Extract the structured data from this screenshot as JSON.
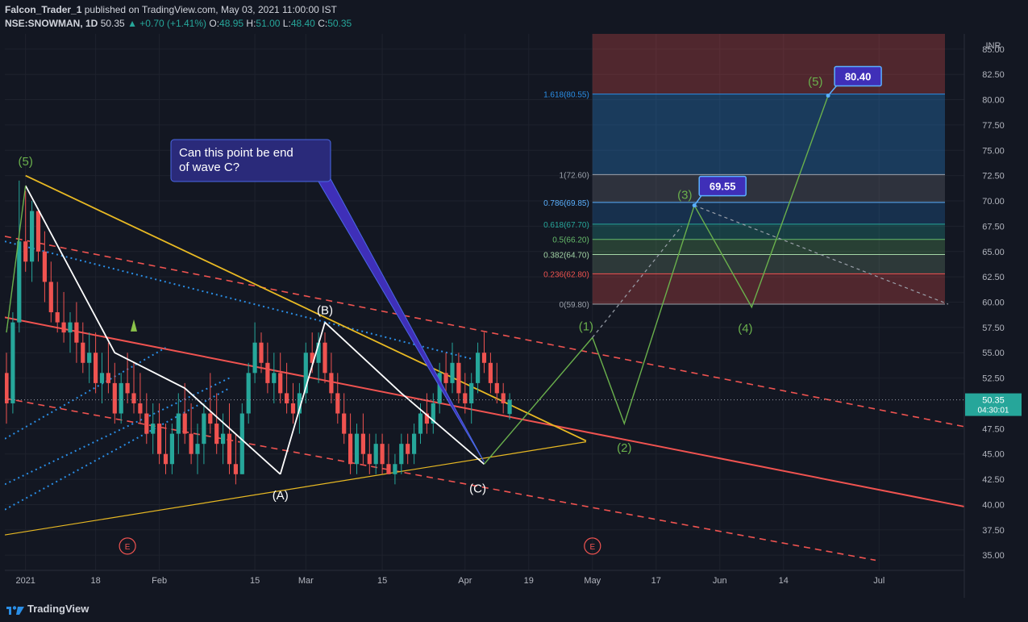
{
  "header": {
    "author": "Falcon_Trader_1",
    "published_text": "published on TradingView.com, May 03, 2021 11:00:00 IST",
    "symbol": "NSE:SNOWMAN, 1D",
    "last": "50.35",
    "change": "+0.70 (+1.41%)",
    "o_label": "O:",
    "o_val": "48.95",
    "h_label": "H:",
    "h_val": "51.00",
    "l_label": "L:",
    "l_val": "48.40",
    "c_label": "C:",
    "c_val": "50.35"
  },
  "footer": {
    "brand": "TradingView"
  },
  "colors": {
    "bg": "#131722",
    "grid": "#1e222d",
    "text": "#b2b5be",
    "up": "#26a69a",
    "down": "#ef5350",
    "white": "#ffffff",
    "yellow": "#e8b923",
    "red_line": "#f05350",
    "blue_dots": "#2a8ee6",
    "wave_green": "#6ab04c",
    "callout_bg": "#2a2a7a",
    "label_bg": "#3f2fb8"
  },
  "chart_data": {
    "type": "candlestick",
    "currency": "INR",
    "y_ticks": [
      "85.00",
      "82.50",
      "80.00",
      "77.50",
      "75.00",
      "72.50",
      "70.00",
      "67.50",
      "65.00",
      "62.50",
      "60.00",
      "57.50",
      "55.00",
      "52.50",
      "47.50",
      "45.00",
      "42.50",
      "40.00",
      "37.50",
      "35.00"
    ],
    "ylim": [
      33.5,
      86.5
    ],
    "x_ticks": [
      {
        "i": 3,
        "label": "2021"
      },
      {
        "i": 14,
        "label": "18"
      },
      {
        "i": 24,
        "label": "Feb"
      },
      {
        "i": 39,
        "label": "15"
      },
      {
        "i": 47,
        "label": "Mar"
      },
      {
        "i": 59,
        "label": "15"
      },
      {
        "i": 72,
        "label": "Apr"
      },
      {
        "i": 82,
        "label": "19"
      },
      {
        "i": 92,
        "label": "May"
      },
      {
        "i": 102,
        "label": "17"
      },
      {
        "i": 112,
        "label": "Jun"
      },
      {
        "i": 122,
        "label": "14"
      },
      {
        "i": 137,
        "label": "Jul"
      }
    ],
    "candles": [
      [
        53,
        55,
        48,
        50
      ],
      [
        50,
        59,
        49,
        58
      ],
      [
        58,
        72,
        57,
        66
      ],
      [
        66,
        71,
        63,
        64
      ],
      [
        64,
        70,
        62,
        69
      ],
      [
        69,
        69,
        64,
        65
      ],
      [
        65,
        67,
        60,
        62
      ],
      [
        62,
        64,
        58,
        59
      ],
      [
        59,
        62,
        57,
        58
      ],
      [
        58,
        61,
        56,
        57
      ],
      [
        57,
        59,
        55,
        58
      ],
      [
        58,
        60,
        54,
        56
      ],
      [
        56,
        58,
        53,
        54
      ],
      [
        54,
        57,
        52,
        55
      ],
      [
        55,
        57,
        51,
        52
      ],
      [
        52,
        55,
        50,
        53
      ],
      [
        53,
        56,
        51,
        52
      ],
      [
        52,
        54,
        48,
        49
      ],
      [
        49,
        53,
        48,
        52
      ],
      [
        52,
        55,
        50,
        51
      ],
      [
        51,
        54,
        49,
        50
      ],
      [
        50,
        53,
        48,
        49
      ],
      [
        49,
        51,
        46,
        47
      ],
      [
        47,
        50,
        45,
        48
      ],
      [
        48,
        50,
        44,
        45
      ],
      [
        45,
        48,
        43,
        44
      ],
      [
        44,
        48,
        43,
        47
      ],
      [
        47,
        51,
        45,
        49
      ],
      [
        49,
        52,
        46,
        47
      ],
      [
        47,
        50,
        44,
        45
      ],
      [
        45,
        48,
        43,
        46
      ],
      [
        46,
        50,
        44,
        49
      ],
      [
        49,
        53,
        47,
        48
      ],
      [
        48,
        51,
        45,
        46
      ],
      [
        46,
        49,
        44,
        47
      ],
      [
        47,
        50,
        43,
        44
      ],
      [
        44,
        47,
        42,
        43
      ],
      [
        43,
        50,
        43,
        49
      ],
      [
        49,
        54,
        48,
        53
      ],
      [
        53,
        58,
        52,
        56
      ],
      [
        56,
        57,
        53,
        54
      ],
      [
        54,
        56,
        51,
        52
      ],
      [
        52,
        55,
        50,
        53
      ],
      [
        53,
        55,
        50,
        51
      ],
      [
        51,
        54,
        49,
        50
      ],
      [
        50,
        52,
        48,
        49
      ],
      [
        49,
        52,
        47,
        51
      ],
      [
        51,
        56,
        50,
        55
      ],
      [
        55,
        57,
        53,
        54
      ],
      [
        54,
        57,
        52,
        56
      ],
      [
        56,
        57,
        52,
        53
      ],
      [
        53,
        55,
        50,
        51
      ],
      [
        51,
        53,
        48,
        49
      ],
      [
        49,
        51,
        46,
        47
      ],
      [
        47,
        49,
        43,
        44
      ],
      [
        44,
        48,
        43,
        47
      ],
      [
        47,
        49,
        44,
        45
      ],
      [
        45,
        47,
        43,
        44
      ],
      [
        44,
        47,
        43,
        46
      ],
      [
        46,
        47,
        43,
        44
      ],
      [
        44,
        46,
        43,
        43
      ],
      [
        43,
        45,
        42,
        44
      ],
      [
        44,
        47,
        43,
        46
      ],
      [
        46,
        47,
        44,
        45
      ],
      [
        45,
        48,
        44,
        47
      ],
      [
        47,
        50,
        46,
        49
      ],
      [
        49,
        51,
        47,
        48
      ],
      [
        48,
        51,
        47,
        50
      ],
      [
        50,
        54,
        49,
        53
      ],
      [
        53,
        55,
        51,
        52
      ],
      [
        52,
        56,
        51,
        54
      ],
      [
        54,
        55,
        50,
        51
      ],
      [
        51,
        53,
        49,
        50
      ],
      [
        50,
        53,
        48,
        52
      ],
      [
        52,
        56,
        51,
        55
      ],
      [
        55,
        57,
        53,
        54
      ],
      [
        54,
        55,
        51,
        52
      ],
      [
        52,
        54,
        50,
        51
      ],
      [
        51,
        52,
        49,
        50
      ],
      [
        48.95,
        51,
        48.4,
        50.35
      ]
    ],
    "fib_levels": [
      {
        "ratio": "1.618(80.55)",
        "value": 80.55,
        "color": "#2a8ee6"
      },
      {
        "ratio": "1(72.60)",
        "value": 72.6,
        "color": "#9aa0aa"
      },
      {
        "ratio": "0.786(69.85)",
        "value": 69.85,
        "color": "#5ab0ff"
      },
      {
        "ratio": "0.618(67.70)",
        "value": 67.7,
        "color": "#26a69a"
      },
      {
        "ratio": "0.5(66.20)",
        "value": 66.2,
        "color": "#66bb6a"
      },
      {
        "ratio": "0.382(64.70)",
        "value": 64.7,
        "color": "#a5d6a7"
      },
      {
        "ratio": "0.236(62.80)",
        "value": 62.8,
        "color": "#ef5350"
      },
      {
        "ratio": "0(59.80)",
        "value": 59.8,
        "color": "#9aa0aa"
      }
    ],
    "wave_labels": {
      "w5_old": "(5)",
      "A": "(A)",
      "B": "(B)",
      "C": "(C)",
      "w1": "(1)",
      "w2": "(2)",
      "w3": "(3)",
      "w4": "(4)",
      "w5": "(5)"
    },
    "price_labels": {
      "current": "50.35",
      "countdown": "04:30:01",
      "target3": "69.55",
      "target5": "80.40"
    },
    "callout": {
      "line1": "Can this point be end",
      "line2": "of wave C?"
    },
    "event_marker": "E"
  }
}
